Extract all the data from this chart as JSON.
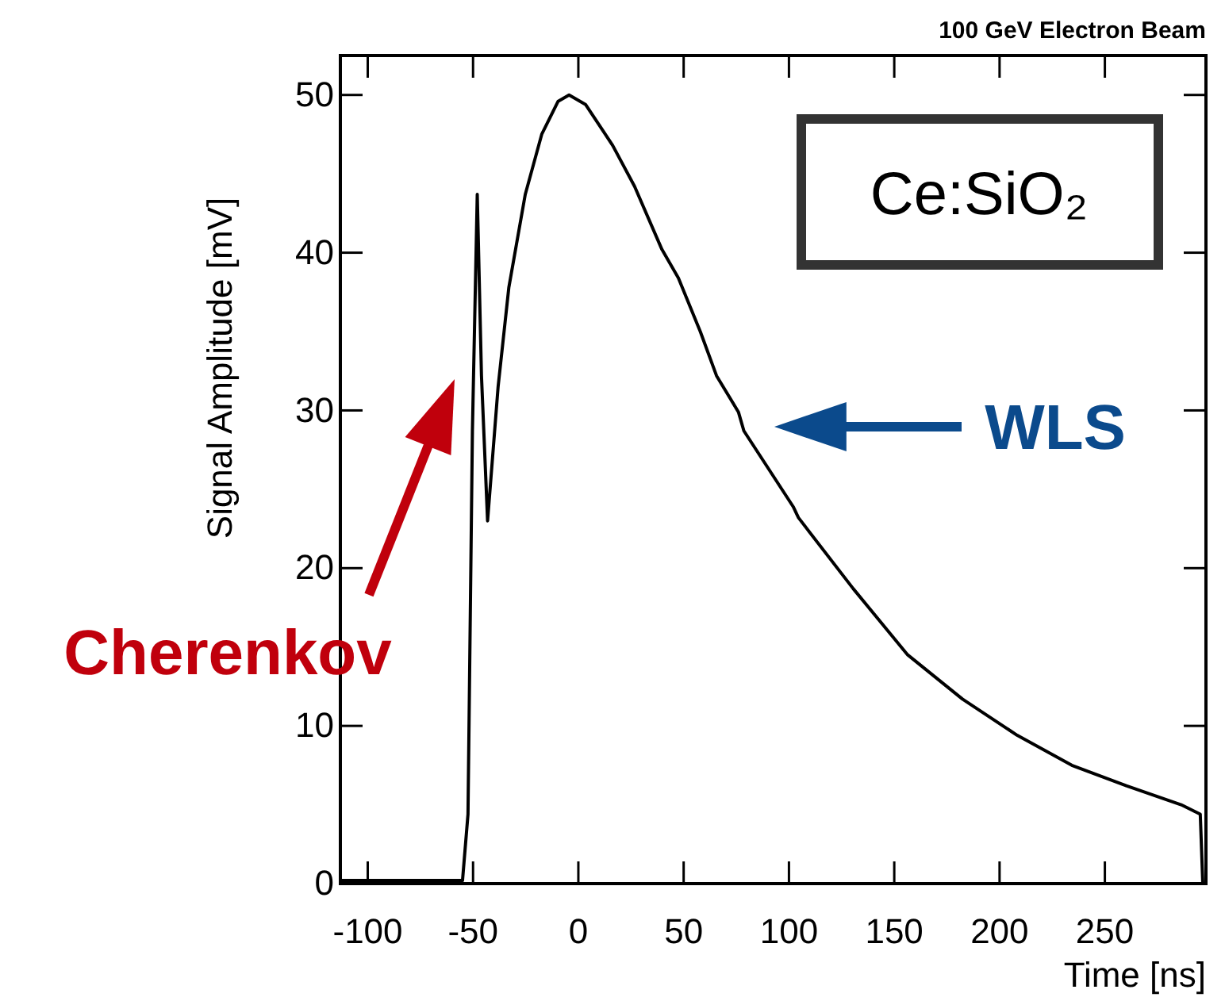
{
  "chart_data": {
    "type": "line",
    "title": "100 GeV Electron Beam",
    "xlabel": "Time [ns]",
    "ylabel": "Signal Amplitude [mV]",
    "xlim": [
      -113,
      298
    ],
    "ylim": [
      0,
      52.5
    ],
    "xticks": [
      -100,
      -50,
      0,
      50,
      100,
      150,
      200,
      250
    ],
    "yticks": [
      0,
      10,
      20,
      30,
      40,
      50
    ],
    "grid": false,
    "marker": "none",
    "line_style": "solid",
    "series": [
      {
        "color": "#000000",
        "x": [
          -113,
          -100,
          -80,
          -55,
          -52.4,
          -50.3,
          -48,
          -46,
          -43.1,
          -38.1,
          -33,
          -25.2,
          -17.4,
          -9.6,
          -4.4,
          3.4,
          16.3,
          26.7,
          39.7,
          47.5,
          57.9,
          65.6,
          76,
          78.6,
          102,
          104.5,
          130.5,
          156.4,
          182.4,
          208.4,
          234.3,
          260.2,
          286.2,
          295.3,
          296.5
        ],
        "values": [
          0.2,
          0.2,
          0.2,
          0.2,
          4.4,
          28.7,
          43.7,
          32.2,
          23,
          31.5,
          37.8,
          43.7,
          47.5,
          49.6,
          50,
          49.4,
          46.8,
          44.2,
          40.2,
          38.4,
          35,
          32.2,
          29.9,
          28.7,
          23.9,
          23.2,
          18.7,
          14.5,
          11.7,
          9.4,
          7.5,
          6.2,
          5,
          4.4,
          0
        ]
      }
    ],
    "annotations": [
      "Cherenkov",
      "WLS",
      "Ce:SiO₂"
    ]
  }
}
